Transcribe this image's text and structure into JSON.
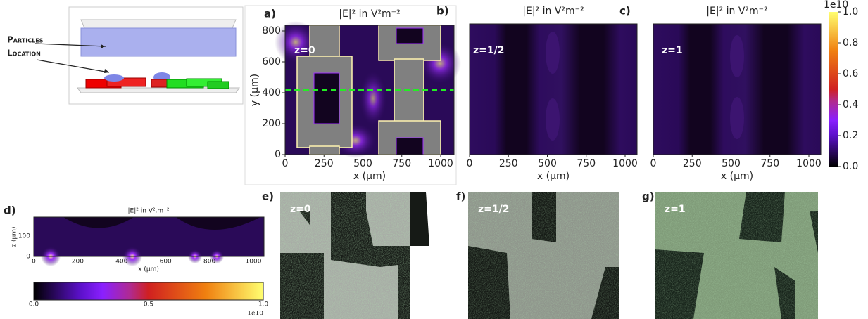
{
  "schematic": {
    "label_lines": [
      "Particles",
      "Location"
    ]
  },
  "field_maps": {
    "title": "|E|² in V²m⁻²",
    "x_label": "x (μm)",
    "y_label": "y (μm)",
    "x_ticks": [
      0,
      250,
      500,
      750,
      1000
    ],
    "y_ticks": [
      0,
      200,
      400,
      600,
      800
    ],
    "panels": [
      {
        "letter": "a)",
        "z_label": "z=0"
      },
      {
        "letter": "b)",
        "z_label": "z=1/2"
      },
      {
        "letter": "c)",
        "z_label": "z=1"
      }
    ],
    "colorbar": {
      "exponent": "1e10",
      "ticks": [
        "0.0",
        "0.2",
        "0.4",
        "0.6",
        "0.8",
        "1.0"
      ]
    }
  },
  "cross_section": {
    "letter": "d)",
    "title": "|E|² in V².m⁻²",
    "x_label": "x (μm)",
    "z_label": "z (μm)",
    "x_ticks": [
      0,
      200,
      400,
      600,
      800,
      1000
    ],
    "z_ticks": [
      0,
      100
    ],
    "colorbar": {
      "ticks": [
        "0.0",
        "0.5",
        "1.0"
      ],
      "exponent": "1e10"
    }
  },
  "micrographs": [
    {
      "letter": "e)",
      "z_label": "z=0"
    },
    {
      "letter": "f)",
      "z_label": "z=1/2"
    },
    {
      "letter": "g)",
      "z_label": "z=1"
    }
  ]
}
